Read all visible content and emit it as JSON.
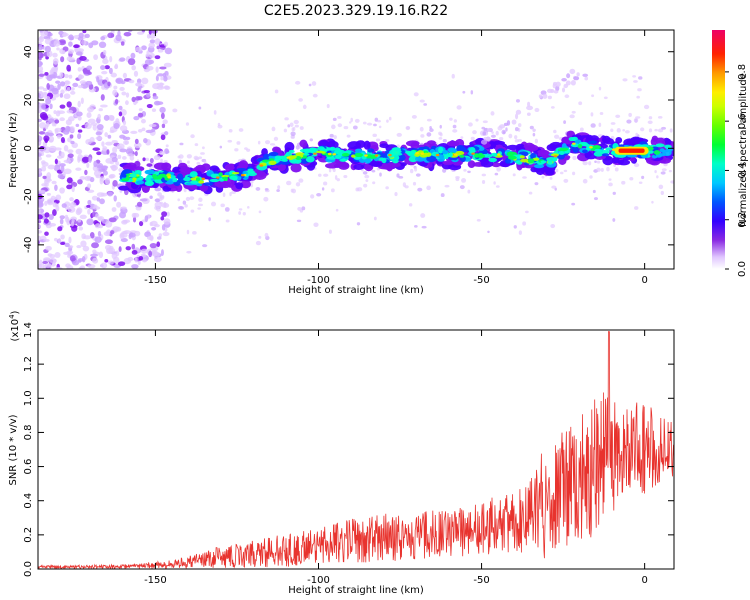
{
  "title": "C2E5.2023.329.19.16.R22",
  "chart_data": [
    {
      "type": "heatmap",
      "name": "spectrogram",
      "xlabel": "Height of straight line (km)",
      "ylabel": "Frequency (Hz)",
      "xlim": [
        -186,
        9
      ],
      "ylim": [
        -50,
        49
      ],
      "xticks": [
        -150,
        -100,
        -50,
        0
      ],
      "xtick_labels": [
        "-150",
        "-100",
        "-50",
        "0"
      ],
      "yticks": [
        -40,
        -20,
        0,
        20,
        40
      ],
      "ytick_labels": [
        "-40",
        "-20",
        "0",
        "20",
        "40"
      ],
      "ridge": [
        {
          "x": -158,
          "y": -12
        },
        {
          "x": -145,
          "y": -12
        },
        {
          "x": -138,
          "y": -13
        },
        {
          "x": -130,
          "y": -12
        },
        {
          "x": -122,
          "y": -11
        },
        {
          "x": -115,
          "y": -5
        },
        {
          "x": -100,
          "y": -2
        },
        {
          "x": -90,
          "y": -3
        },
        {
          "x": -80,
          "y": -3
        },
        {
          "x": -70,
          "y": -2
        },
        {
          "x": -62,
          "y": -3
        },
        {
          "x": -50,
          "y": -2
        },
        {
          "x": -40,
          "y": -3
        },
        {
          "x": -30,
          "y": -6
        },
        {
          "x": -22,
          "y": 2
        },
        {
          "x": -15,
          "y": 0
        },
        {
          "x": -5,
          "y": -1
        },
        {
          "x": 8,
          "y": -1
        }
      ],
      "hot_segment": {
        "x_start": -8,
        "x_end": 0,
        "y": -1
      }
    },
    {
      "type": "colorbar",
      "name": "colorbar",
      "label": "Normalized spectral amplitude",
      "range": [
        0,
        0.97
      ],
      "ticks": [
        0.0,
        0.2,
        0.4,
        0.6,
        0.8
      ],
      "tick_labels": [
        "0.0",
        "0.2",
        "0.4",
        "0.6",
        "0.8"
      ]
    },
    {
      "type": "line",
      "name": "snr",
      "xlabel": "Height of straight line (km)",
      "ylabel": "SNR (10 * v/v)",
      "y_multiplier": "(x10",
      "y_multiplier_exp": "4",
      "y_multiplier_close": ")",
      "xlim": [
        -186,
        9
      ],
      "ylim": [
        0,
        1.4
      ],
      "xticks": [
        -150,
        -100,
        -50,
        0
      ],
      "xtick_labels": [
        "-150",
        "-100",
        "-50",
        "0"
      ],
      "yticks": [
        0.0,
        0.2,
        0.4,
        0.6,
        0.8,
        1.0,
        1.2,
        1.4
      ],
      "ytick_labels": [
        "0.0",
        "0.2",
        "0.4",
        "0.6",
        "0.8",
        "1.0",
        "1.2",
        "1.4"
      ],
      "color": "#e8332e",
      "envelope": [
        {
          "x": -186,
          "base": 0.01,
          "amp": 0.01
        },
        {
          "x": -160,
          "base": 0.01,
          "amp": 0.015
        },
        {
          "x": -145,
          "base": 0.02,
          "amp": 0.03
        },
        {
          "x": -130,
          "base": 0.05,
          "amp": 0.08
        },
        {
          "x": -110,
          "base": 0.08,
          "amp": 0.12
        },
        {
          "x": -95,
          "base": 0.12,
          "amp": 0.15
        },
        {
          "x": -80,
          "base": 0.14,
          "amp": 0.18
        },
        {
          "x": -60,
          "base": 0.17,
          "amp": 0.18
        },
        {
          "x": -45,
          "base": 0.2,
          "amp": 0.22
        },
        {
          "x": -35,
          "base": 0.25,
          "amp": 0.26
        },
        {
          "x": -30,
          "base": 0.3,
          "amp": 0.45
        },
        {
          "x": -22,
          "base": 0.4,
          "amp": 0.45
        },
        {
          "x": -12,
          "base": 0.5,
          "amp": 0.55
        },
        {
          "x": -8,
          "base": 0.6,
          "amp": 0.35
        },
        {
          "x": 0,
          "base": 0.62,
          "amp": 0.35
        },
        {
          "x": 9,
          "base": 0.65,
          "amp": 0.2
        }
      ],
      "peak": {
        "x": -11,
        "y": 1.39
      }
    }
  ]
}
